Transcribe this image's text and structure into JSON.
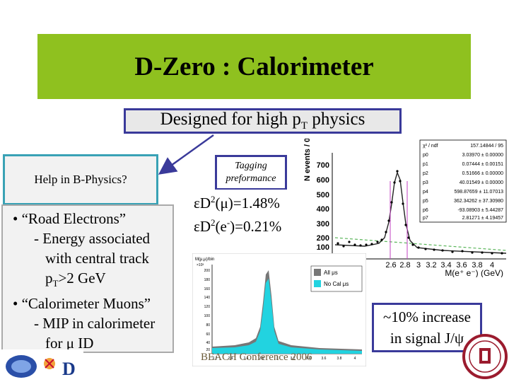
{
  "title": "D-Zero : Calorimeter",
  "subtitle_prefix": "Designed for high p",
  "subtitle_sub": "T",
  "subtitle_suffix": " physics",
  "bphysics_label": "Help in B-Physics?",
  "tagging_line1": "Tagging",
  "tagging_line2": "preformance",
  "bullets": {
    "b1": "• “Road Electrons”",
    "b1_l1": "- Energy associated",
    "b1_l2": "with central track",
    "b1_l3_pre": "p",
    "b1_l3_sub": "T",
    "b1_l3_post": ">2 GeV",
    "b2": "• “Calorimeter Muons”",
    "b2_l1": "- MIP in calorimeter",
    "b2_l2": "for μ ID"
  },
  "efficiency": {
    "line1_pre": "εD",
    "line1_sup": "2",
    "line1_post": "(μ)=1.48%",
    "line2_pre": "εD",
    "line2_sup": "2",
    "line2_mid": "(e",
    "line2_sup2": "-",
    "line2_post": ")=0.21%"
  },
  "fit_box": {
    "rows": [
      [
        "χ² / ndf",
        "157.14844 / 95"
      ],
      [
        "p0",
        "3.03970 ± 0.00000"
      ],
      [
        "p1",
        "0.07444 ± 0.00151"
      ],
      [
        "p2",
        "0.51666 ± 0.00000"
      ],
      [
        "p3",
        "40.01549 ± 0.00000"
      ],
      [
        "p4",
        "598.87659 ± 11.07013"
      ],
      [
        "p5",
        "362.34262 ± 37.30980"
      ],
      [
        "p6",
        "-93.08903 ± 5.44287"
      ],
      [
        "p7",
        "2.81271 ± 4.19457"
      ]
    ]
  },
  "right_plot": {
    "y_axis_label": "N events / 0.04",
    "y_ticks": [
      "700",
      "600",
      "500",
      "400",
      "300",
      "200",
      "100"
    ],
    "x_ticks": [
      "2.6",
      "2.8",
      "3",
      "3.2",
      "3.4",
      "3.6",
      "3.8",
      "4"
    ],
    "x_axis_label": "M(e⁺ e⁻) (GeV)"
  },
  "inset": {
    "header": "M(μ,μ)/bin",
    "scale": "×10³",
    "legend_all": "All μs",
    "legend_nocal": "No Cal μs",
    "y_ticks": [
      "200",
      "180",
      "160",
      "140",
      "120",
      "100",
      "80",
      "60",
      "40",
      "20"
    ],
    "x_ticks": [
      "2.2",
      "2.4",
      "2.6",
      "2.8",
      "3",
      "3.2",
      "3.4",
      "3.6",
      "3.8",
      "4"
    ],
    "color_all": "#777777",
    "color_nocal": "#22d3e0"
  },
  "increase_line1": "~10% increase",
  "increase_line2": "in signal J/ψ",
  "footer": "BEACH Conference 2006",
  "colors": {
    "title_bar": "#8fc11f",
    "box_border": "#3a3a9a",
    "bphys_border": "#39a2b5",
    "arrow": "#3a3a9a"
  }
}
